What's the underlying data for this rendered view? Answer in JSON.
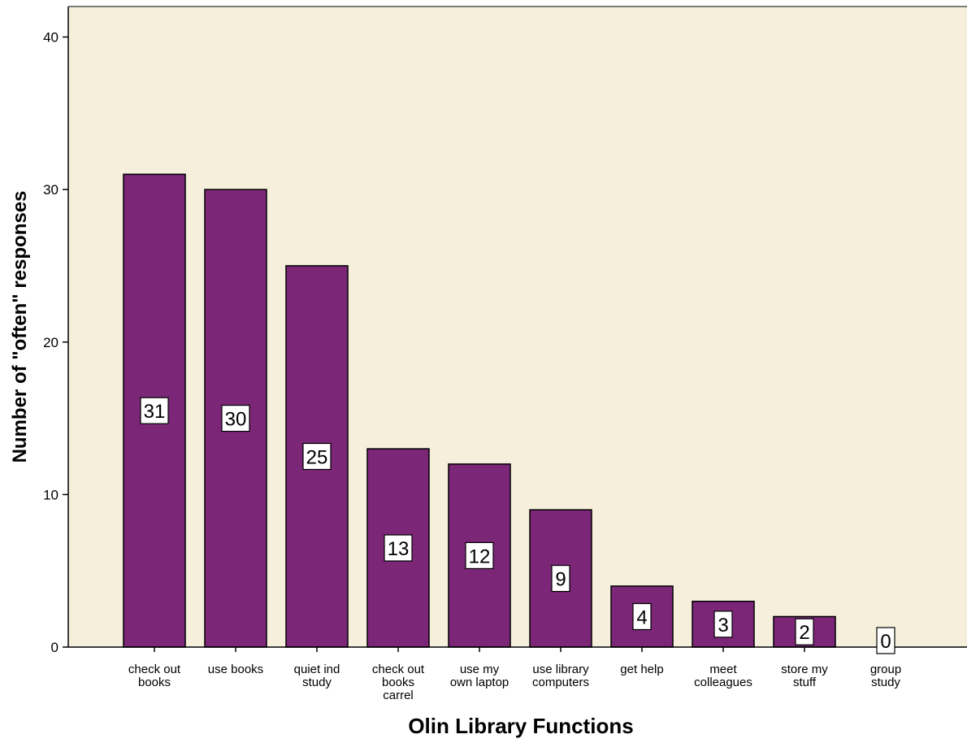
{
  "chart_data": {
    "type": "bar",
    "xlabel": "Olin Library Functions",
    "ylabel": "Number of \"often\" responses",
    "ylim": [
      0,
      42
    ],
    "yticks": [
      0,
      10,
      20,
      30,
      40
    ],
    "categories": [
      [
        "check out",
        "books"
      ],
      [
        "use books"
      ],
      [
        "quiet ind",
        "study"
      ],
      [
        "check out",
        "books",
        "carrel"
      ],
      [
        "use my",
        "own laptop"
      ],
      [
        "use library",
        "computers"
      ],
      [
        "get help"
      ],
      [
        "meet",
        "colleagues"
      ],
      [
        "store my",
        "stuff"
      ],
      [
        "group",
        "study"
      ]
    ],
    "values": [
      31,
      30,
      25,
      13,
      12,
      9,
      4,
      3,
      2,
      0
    ],
    "data_labels": [
      "31",
      "30",
      "25",
      "13",
      "12",
      "9",
      "4",
      "3",
      "2",
      "0"
    ],
    "grid": false,
    "colors": {
      "bar": "#7b2677",
      "plot_background": "#f5efdc",
      "axis": "#000000"
    }
  }
}
